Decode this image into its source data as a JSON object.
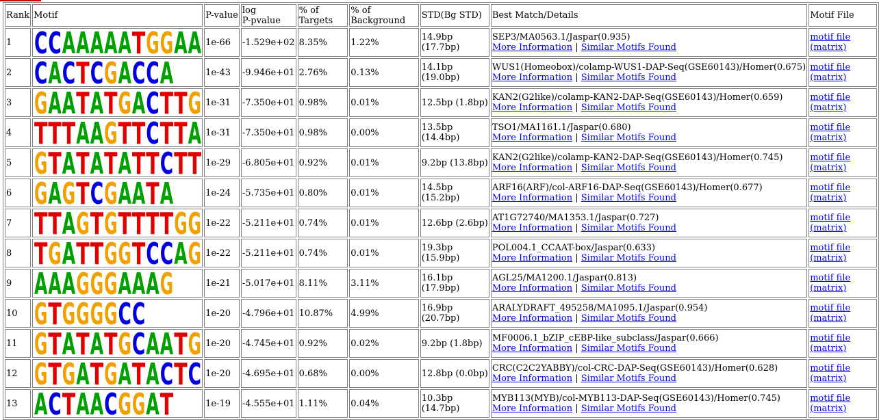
{
  "headers": {
    "rank": "Rank",
    "motif": "Motif",
    "pvalue": "P-value",
    "logp_a": "log",
    "logp_b": "P-pvalue",
    "targets_a": "% of",
    "targets_b": "Targets",
    "bg_a": "% of",
    "bg_b": "Background",
    "std": "STD(Bg STD)",
    "best": "Best Match/Details",
    "file": "Motif File"
  },
  "links": {
    "more": "More Information",
    "sep": "|",
    "similar": "Similar Motifs Found",
    "motif_file": "motif file",
    "matrix": "(matrix)"
  },
  "colors": {
    "A": "#00a000",
    "C": "#0000e0",
    "G": "#f0a000",
    "T": "#e00000"
  },
  "rows": [
    {
      "rank": "1",
      "seq": "CCAAAAATGGAA",
      "pvalue": "1e-66",
      "logp": "-1.529e+02",
      "targets": "8.35%",
      "bg": "1.22%",
      "std1": "14.9bp",
      "std2": "(17.7bp)",
      "best": "SEP3/MA0563.1/Jaspar(0.935)"
    },
    {
      "rank": "2",
      "seq": "CACTCGACCA",
      "pvalue": "1e-43",
      "logp": "-9.946e+01",
      "targets": "2.76%",
      "bg": "0.13%",
      "std1": "14.1bp",
      "std2": "(19.0bp)",
      "best": "WUS1(Homeobox)/colamp-WUS1-DAP-Seq(GSE60143)/Homer(0.675)"
    },
    {
      "rank": "3",
      "seq": "GAATATGACTTG",
      "pvalue": "1e-31",
      "logp": "-7.350e+01",
      "targets": "0.98%",
      "bg": "0.01%",
      "std1": "12.5bp (1.8bp)",
      "std2": "",
      "best": "KAN2(G2like)/colamp-KAN2-DAP-Seq(GSE60143)/Homer(0.659)"
    },
    {
      "rank": "4",
      "seq": "TTTAAGTTCTTA",
      "pvalue": "1e-31",
      "logp": "-7.350e+01",
      "targets": "0.98%",
      "bg": "0.00%",
      "std1": "13.5bp",
      "std2": "(14.4bp)",
      "best": "TSO1/MA1161.1/Jaspar(0.680)"
    },
    {
      "rank": "5",
      "seq": "GTATATATTCTT",
      "pvalue": "1e-29",
      "logp": "-6.805e+01",
      "targets": "0.92%",
      "bg": "0.01%",
      "std1": "9.2bp (13.8bp)",
      "std2": "",
      "best": "KAN2(G2like)/colamp-KAN2-DAP-Seq(GSE60143)/Homer(0.745)"
    },
    {
      "rank": "6",
      "seq": "GAGTCGAATA",
      "pvalue": "1e-24",
      "logp": "-5.735e+01",
      "targets": "0.80%",
      "bg": "0.01%",
      "std1": "14.5bp",
      "std2": "(15.2bp)",
      "best": "ARF16(ARF)/col-ARF16-DAP-Seq(GSE60143)/Homer(0.677)"
    },
    {
      "rank": "7",
      "seq": "TTAGTGTTTTGG",
      "pvalue": "1e-22",
      "logp": "-5.211e+01",
      "targets": "0.74%",
      "bg": "0.01%",
      "std1": "12.6bp (2.6bp)",
      "std2": "",
      "best": "AT1G72740/MA1353.1/Jaspar(0.727)"
    },
    {
      "rank": "8",
      "seq": "TGATTGGTCCAG",
      "pvalue": "1e-22",
      "logp": "-5.211e+01",
      "targets": "0.74%",
      "bg": "0.01%",
      "std1": "19.3bp",
      "std2": "(15.9bp)",
      "best": "POL004.1_CCAAT-box/Jaspar(0.633)"
    },
    {
      "rank": "9",
      "seq": "AAAGGGAAAG",
      "pvalue": "1e-21",
      "logp": "-5.017e+01",
      "targets": "8.11%",
      "bg": "3.11%",
      "std1": "16.1bp",
      "std2": "(17.9bp)",
      "best": "AGL25/MA1200.1/Jaspar(0.813)"
    },
    {
      "rank": "10",
      "seq": "GTGGGGCC",
      "pvalue": "1e-20",
      "logp": "-4.796e+01",
      "targets": "10.87%",
      "bg": "4.99%",
      "std1": "16.9bp",
      "std2": "(20.7bp)",
      "best": "ARALYDRAFT_495258/MA1095.1/Jaspar(0.954)"
    },
    {
      "rank": "11",
      "seq": "GTATATGCAATG",
      "pvalue": "1e-20",
      "logp": "-4.745e+01",
      "targets": "0.92%",
      "bg": "0.02%",
      "std1": "9.2bp (1.8bp)",
      "std2": "",
      "best": "MF0006.1_bZIP_cEBP-like_subclass/Jaspar(0.666)"
    },
    {
      "rank": "12",
      "seq": "GTGATGATACTC",
      "pvalue": "1e-20",
      "logp": "-4.695e+01",
      "targets": "0.68%",
      "bg": "0.00%",
      "std1": "12.8bp (0.0bp)",
      "std2": "",
      "best": "CRC(C2C2YABBY)/col-CRC-DAP-Seq(GSE60143)/Homer(0.628)"
    },
    {
      "rank": "13",
      "seq": "ACTAACGGAT",
      "pvalue": "1e-19",
      "logp": "-4.555e+01",
      "targets": "1.11%",
      "bg": "0.04%",
      "std1": "10.3bp",
      "std2": "(14.7bp)",
      "best": "MYB113(MYB)/col-MYB113-DAP-Seq(GSE60143)/Homer(0.745)"
    }
  ]
}
